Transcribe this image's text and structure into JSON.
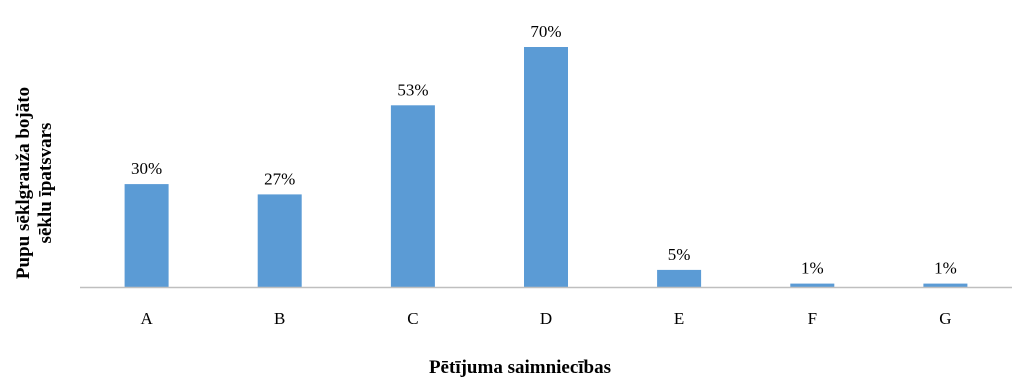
{
  "chart_data": {
    "type": "bar",
    "categories": [
      "A",
      "B",
      "C",
      "D",
      "E",
      "F",
      "G"
    ],
    "values": [
      30,
      27,
      53,
      70,
      5,
      1,
      1
    ],
    "data_labels": [
      "30%",
      "27%",
      "53%",
      "70%",
      "5%",
      "1%",
      "1%"
    ],
    "unit": "%",
    "title": "",
    "xlabel": "Pētījuma saimniecības",
    "ylabel_lines": [
      "Pupu sēklgrauža bojāto",
      "sēklu īpatsvars"
    ],
    "ylim": [
      0,
      70
    ],
    "grid": false,
    "legend": "none",
    "bar_color": "#5b9bd5",
    "axis_color": "#bfbfbf"
  }
}
